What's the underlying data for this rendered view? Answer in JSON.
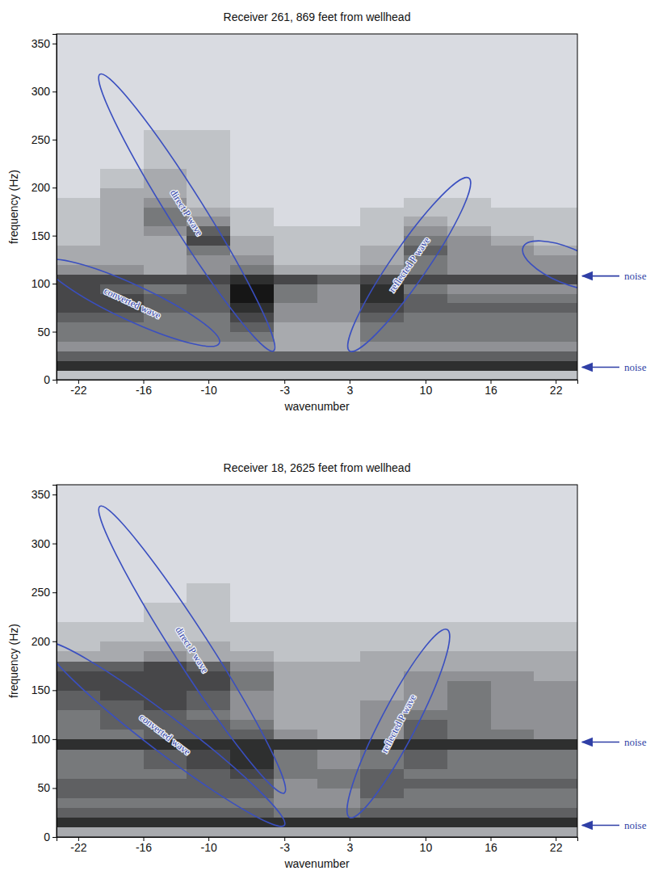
{
  "chart_data": [
    {
      "type": "heatmap",
      "title": "Receiver 261, 869 feet from wellhead",
      "x_label": "wavenumber",
      "y_label": "frequency (Hz)",
      "xlim": [
        -24,
        24
      ],
      "ylim": [
        0,
        360
      ],
      "xticks": [
        -22,
        -16,
        -10,
        -3,
        3,
        10,
        16,
        22
      ],
      "yticks": [
        0,
        50,
        100,
        150,
        200,
        250,
        300,
        350
      ],
      "x_bins": [
        -24,
        -20,
        -16,
        -12,
        -8,
        -4,
        0,
        4,
        8,
        12,
        16,
        20,
        24
      ],
      "y_bins": [
        0,
        10,
        20,
        30,
        40,
        50,
        60,
        70,
        80,
        90,
        100,
        110,
        120,
        130,
        140,
        150,
        160,
        170,
        180,
        190,
        200,
        220,
        240,
        260,
        280,
        300,
        320,
        340,
        360
      ],
      "zlim": [
        0,
        9
      ],
      "cells": [
        [
          2,
          2,
          2,
          2,
          2,
          2,
          2,
          2,
          2,
          2,
          2,
          2
        ],
        [
          8,
          8,
          8,
          8,
          8,
          8,
          8,
          8,
          8,
          8,
          8,
          8
        ],
        [
          6,
          6,
          6,
          6,
          6,
          6,
          6,
          6,
          6,
          6,
          6,
          6
        ],
        [
          4,
          4,
          4,
          4,
          4,
          3,
          3,
          4,
          4,
          4,
          4,
          4
        ],
        [
          5,
          5,
          5,
          5,
          5,
          3,
          3,
          5,
          5,
          5,
          5,
          5
        ],
        [
          5,
          5,
          5,
          5,
          6,
          3,
          3,
          5,
          5,
          5,
          5,
          5
        ],
        [
          6,
          6,
          5,
          5,
          7,
          4,
          4,
          6,
          5,
          5,
          5,
          5
        ],
        [
          7,
          7,
          6,
          6,
          8,
          4,
          4,
          7,
          6,
          6,
          6,
          6
        ],
        [
          7,
          7,
          6,
          6,
          9,
          5,
          4,
          8,
          6,
          5,
          5,
          5
        ],
        [
          7,
          6,
          5,
          6,
          9,
          5,
          4,
          8,
          5,
          4,
          4,
          4
        ],
        [
          7,
          7,
          7,
          7,
          8,
          7,
          6,
          7,
          7,
          7,
          7,
          7
        ],
        [
          4,
          4,
          3,
          4,
          5,
          3,
          3,
          4,
          5,
          4,
          4,
          4
        ],
        [
          3,
          3,
          3,
          4,
          4,
          2,
          2,
          3,
          5,
          4,
          4,
          4
        ],
        [
          3,
          3,
          3,
          5,
          3,
          2,
          2,
          3,
          6,
          4,
          4,
          3
        ],
        [
          2,
          3,
          3,
          7,
          3,
          2,
          2,
          2,
          5,
          4,
          3,
          2
        ],
        [
          2,
          3,
          4,
          6,
          2,
          2,
          2,
          2,
          4,
          3,
          2,
          2
        ],
        [
          2,
          3,
          5,
          4,
          2,
          1,
          1,
          2,
          3,
          2,
          2,
          2
        ],
        [
          2,
          3,
          5,
          3,
          2,
          1,
          1,
          2,
          2,
          2,
          2,
          2
        ],
        [
          2,
          3,
          4,
          2,
          1,
          1,
          1,
          1,
          2,
          2,
          1,
          1
        ],
        [
          1,
          3,
          3,
          2,
          1,
          1,
          1,
          1,
          1,
          1,
          1,
          1
        ],
        [
          1,
          2,
          3,
          2,
          1,
          1,
          1,
          1,
          1,
          1,
          1,
          1
        ],
        [
          1,
          1,
          2,
          2,
          1,
          1,
          1,
          1,
          1,
          1,
          1,
          1
        ],
        [
          1,
          1,
          2,
          2,
          1,
          1,
          1,
          1,
          1,
          1,
          1,
          1
        ],
        [
          1,
          1,
          1,
          1,
          1,
          1,
          1,
          1,
          1,
          1,
          1,
          1
        ],
        [
          1,
          1,
          1,
          1,
          1,
          1,
          1,
          1,
          1,
          1,
          1,
          1
        ],
        [
          1,
          1,
          1,
          1,
          1,
          1,
          1,
          1,
          1,
          1,
          1,
          1
        ],
        [
          1,
          1,
          1,
          1,
          1,
          1,
          1,
          1,
          1,
          1,
          1,
          1
        ],
        [
          1,
          1,
          1,
          1,
          1,
          1,
          1,
          1,
          1,
          1,
          1,
          1
        ]
      ],
      "regions": [
        {
          "text": "direct P wave",
          "x": [
            -20,
            -4
          ],
          "y": [
            318,
            30
          ]
        },
        {
          "text": "converted wave",
          "x": [
            -25,
            -9
          ],
          "y": [
            122,
            38
          ]
        },
        {
          "text": "reflected P wave",
          "x": [
            14,
            3
          ],
          "y": [
            210,
            30
          ]
        },
        {
          "x": [
            19,
            27
          ],
          "y": [
            138,
            100
          ]
        }
      ],
      "markers": [
        {
          "text": "noise",
          "y": 108
        },
        {
          "text": "noise",
          "y": 13
        }
      ]
    },
    {
      "type": "heatmap",
      "title": "Receiver 18, 2625 feet from wellhead",
      "x_label": "wavenumber",
      "y_label": "frequency (Hz)",
      "xlim": [
        -24,
        24
      ],
      "ylim": [
        0,
        360
      ],
      "xticks": [
        -22,
        -16,
        -10,
        -3,
        3,
        10,
        16,
        22
      ],
      "yticks": [
        0,
        50,
        100,
        150,
        200,
        250,
        300,
        350
      ],
      "x_bins": [
        -24,
        -20,
        -16,
        -12,
        -8,
        -4,
        0,
        4,
        8,
        12,
        16,
        20,
        24
      ],
      "y_bins": [
        0,
        10,
        20,
        30,
        40,
        50,
        60,
        70,
        80,
        90,
        100,
        110,
        120,
        130,
        140,
        150,
        160,
        170,
        180,
        190,
        200,
        220,
        240,
        260,
        280,
        300,
        320,
        340,
        360
      ],
      "zlim": [
        0,
        9
      ],
      "cells": [
        [
          3,
          3,
          3,
          3,
          3,
          3,
          3,
          3,
          3,
          3,
          3,
          3
        ],
        [
          8,
          8,
          8,
          8,
          8,
          8,
          8,
          8,
          8,
          8,
          8,
          8
        ],
        [
          6,
          6,
          6,
          6,
          6,
          5,
          5,
          6,
          6,
          6,
          6,
          6
        ],
        [
          5,
          5,
          5,
          5,
          5,
          4,
          4,
          5,
          5,
          5,
          5,
          5
        ],
        [
          6,
          6,
          6,
          6,
          6,
          4,
          4,
          6,
          5,
          5,
          5,
          5
        ],
        [
          6,
          6,
          6,
          6,
          6,
          4,
          5,
          6,
          6,
          6,
          6,
          6
        ],
        [
          5,
          5,
          5,
          6,
          7,
          5,
          5,
          6,
          5,
          5,
          5,
          5
        ],
        [
          5,
          5,
          6,
          7,
          8,
          5,
          4,
          5,
          6,
          5,
          5,
          5
        ],
        [
          5,
          5,
          6,
          7,
          8,
          5,
          4,
          5,
          6,
          5,
          5,
          5
        ],
        [
          8,
          8,
          8,
          8,
          8,
          8,
          8,
          8,
          8,
          8,
          8,
          8
        ],
        [
          5,
          5,
          6,
          6,
          6,
          4,
          3,
          4,
          6,
          5,
          5,
          4
        ],
        [
          5,
          6,
          6,
          6,
          5,
          3,
          3,
          4,
          6,
          5,
          4,
          4
        ],
        [
          5,
          6,
          6,
          5,
          4,
          3,
          3,
          4,
          5,
          5,
          4,
          4
        ],
        [
          6,
          6,
          7,
          6,
          4,
          3,
          3,
          4,
          4,
          5,
          4,
          4
        ],
        [
          6,
          7,
          7,
          6,
          4,
          3,
          3,
          3,
          4,
          5,
          4,
          4
        ],
        [
          7,
          7,
          7,
          7,
          5,
          3,
          3,
          3,
          4,
          5,
          4,
          4
        ],
        [
          7,
          7,
          7,
          7,
          5,
          3,
          3,
          3,
          4,
          4,
          4,
          3
        ],
        [
          6,
          6,
          7,
          6,
          4,
          3,
          3,
          3,
          3,
          3,
          3,
          3
        ],
        [
          3,
          3,
          4,
          3,
          3,
          2,
          2,
          3,
          3,
          3,
          3,
          3
        ],
        [
          2,
          3,
          3,
          3,
          2,
          2,
          2,
          2,
          2,
          2,
          2,
          2
        ],
        [
          2,
          2,
          2,
          2,
          2,
          2,
          2,
          2,
          2,
          2,
          2,
          2
        ],
        [
          1,
          1,
          2,
          2,
          1,
          1,
          1,
          1,
          1,
          1,
          1,
          1
        ],
        [
          1,
          1,
          1,
          2,
          1,
          1,
          1,
          1,
          1,
          1,
          1,
          1
        ],
        [
          1,
          1,
          1,
          1,
          1,
          1,
          1,
          1,
          1,
          1,
          1,
          1
        ],
        [
          1,
          1,
          1,
          1,
          1,
          1,
          1,
          1,
          1,
          1,
          1,
          1
        ],
        [
          1,
          1,
          1,
          1,
          1,
          1,
          1,
          1,
          1,
          1,
          1,
          1
        ],
        [
          1,
          1,
          1,
          1,
          1,
          1,
          1,
          1,
          1,
          1,
          1,
          1
        ],
        [
          1,
          1,
          1,
          1,
          1,
          1,
          1,
          1,
          1,
          1,
          1,
          1
        ]
      ],
      "regions": [
        {
          "text": "direct P wave",
          "x": [
            -20,
            -3
          ],
          "y": [
            338,
            45
          ]
        },
        {
          "text": "converted wave",
          "x": [
            -25,
            -3
          ],
          "y": [
            198,
            12
          ]
        },
        {
          "text": "reflected P wave",
          "x": [
            12,
            3
          ],
          "y": [
            212,
            20
          ]
        }
      ],
      "markers": [
        {
          "text": "noise",
          "y": 97
        },
        {
          "text": "noise",
          "y": 12
        }
      ]
    }
  ]
}
